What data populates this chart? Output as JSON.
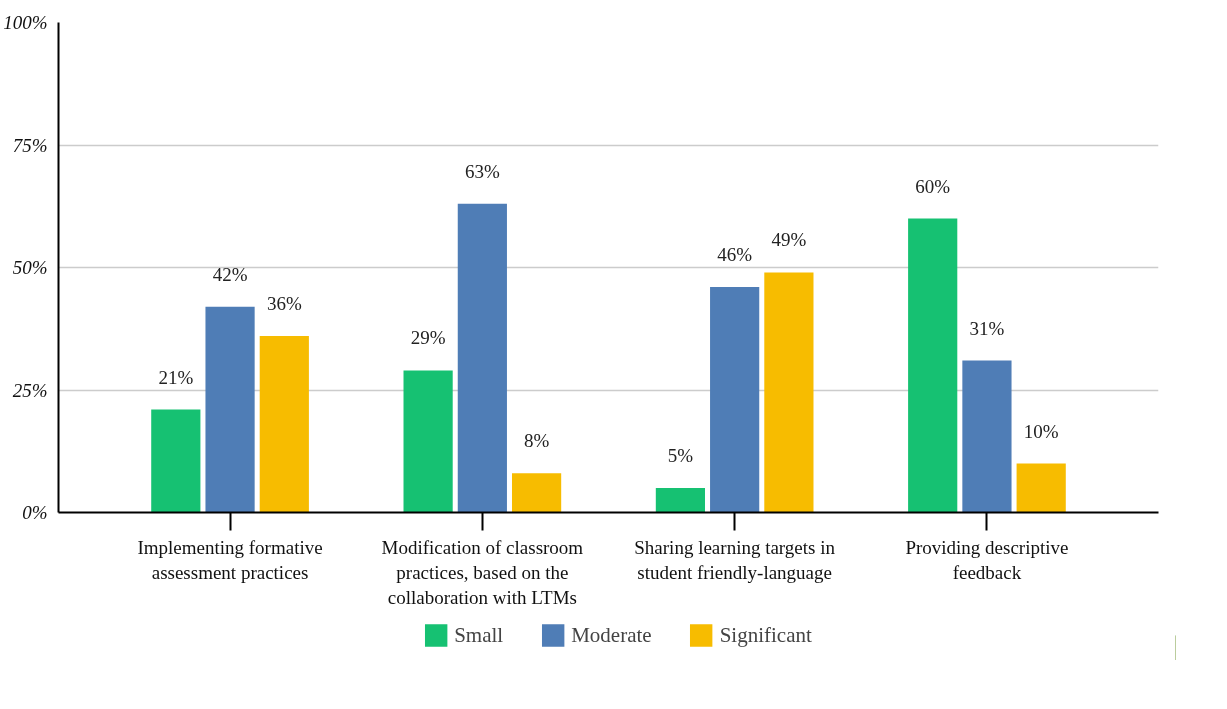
{
  "chart_data": {
    "type": "bar",
    "categories": [
      "Implementing formative assessment practices",
      "Modification of classroom practices, based on the collaboration with LTMs",
      "Sharing learning targets in student friendly-language",
      "Providing descriptive feedback"
    ],
    "series": [
      {
        "name": "Small",
        "color": "#16c172",
        "values": [
          21,
          29,
          5,
          60
        ],
        "value_labels": [
          "21%",
          "29%",
          "5%",
          "60%"
        ]
      },
      {
        "name": "Moderate",
        "color": "#4f7db6",
        "values": [
          42,
          63,
          46,
          31
        ],
        "value_labels": [
          "42%",
          "63%",
          "46%",
          "31%"
        ]
      },
      {
        "name": "Significant",
        "color": "#f7bc00",
        "values": [
          36,
          8,
          49,
          10
        ],
        "value_labels": [
          "36%",
          "8%",
          "49%",
          "10%"
        ]
      }
    ],
    "ylim": [
      0,
      100
    ],
    "yticks": [
      {
        "value": 0,
        "label": "0%"
      },
      {
        "value": 25,
        "label": "25%"
      },
      {
        "value": 50,
        "label": "50%"
      },
      {
        "value": 75,
        "label": "75%"
      },
      {
        "value": 100,
        "label": "100%"
      }
    ],
    "grid": "y",
    "legend": "bottom"
  }
}
